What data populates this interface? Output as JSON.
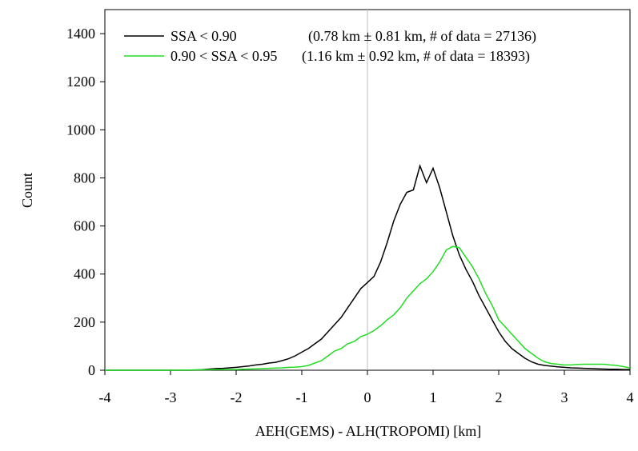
{
  "chart_data": {
    "type": "line",
    "x_label": "AEH(GEMS) - ALH(TROPOMI) [km]",
    "y_label": "Count",
    "x": [
      -4,
      -3.9,
      -3.8,
      -3.7,
      -3.6,
      -3.5,
      -3.4,
      -3.3,
      -3.2,
      -3.1,
      -3,
      -2.9,
      -2.8,
      -2.7,
      -2.6,
      -2.5,
      -2.4,
      -2.3,
      -2.2,
      -2.1,
      -2,
      -1.9,
      -1.8,
      -1.7,
      -1.6,
      -1.5,
      -1.4,
      -1.3,
      -1.2,
      -1.1,
      -1,
      -0.9,
      -0.8,
      -0.7,
      -0.6,
      -0.5,
      -0.4,
      -0.3,
      -0.2,
      -0.1,
      0,
      0.1,
      0.2,
      0.3,
      0.4,
      0.5,
      0.6,
      0.7,
      0.8,
      0.9,
      1,
      1.1,
      1.2,
      1.3,
      1.4,
      1.5,
      1.6,
      1.7,
      1.8,
      1.9,
      2,
      2.1,
      2.2,
      2.3,
      2.4,
      2.5,
      2.6,
      2.7,
      2.8,
      2.9,
      3,
      3.1,
      3.2,
      3.3,
      3.4,
      3.5,
      3.6,
      3.7,
      3.8,
      3.9,
      4
    ],
    "series": [
      {
        "name": "SSA < 0.90",
        "stats": "(0.78 km ±  0.81 km, # of data = 27136)",
        "color": "#000000",
        "values": [
          0,
          0,
          0,
          0,
          0,
          0,
          0,
          0,
          0,
          0,
          0,
          0,
          0,
          0,
          1,
          3,
          5,
          7,
          8,
          10,
          12,
          15,
          18,
          22,
          25,
          30,
          33,
          40,
          48,
          60,
          75,
          90,
          110,
          130,
          160,
          190,
          220,
          260,
          300,
          340,
          365,
          390,
          450,
          530,
          620,
          690,
          740,
          750,
          850,
          780,
          840,
          760,
          660,
          560,
          480,
          420,
          370,
          310,
          260,
          210,
          160,
          120,
          90,
          70,
          50,
          35,
          25,
          20,
          17,
          14,
          12,
          10,
          9,
          8,
          7,
          6,
          5,
          4,
          4,
          3,
          3
        ]
      },
      {
        "name": "0.90 < SSA < 0.95",
        "stats": "(1.16 km ±  0.92 km, # of data = 18393)",
        "color": "#22dd22",
        "values": [
          0,
          0,
          0,
          0,
          0,
          0,
          0,
          0,
          0,
          0,
          0,
          1,
          1,
          1,
          2,
          2,
          2,
          3,
          3,
          3,
          3,
          4,
          5,
          6,
          7,
          8,
          9,
          10,
          12,
          13,
          15,
          20,
          30,
          40,
          60,
          80,
          90,
          110,
          120,
          140,
          150,
          165,
          185,
          210,
          230,
          260,
          300,
          330,
          360,
          380,
          410,
          450,
          500,
          515,
          510,
          470,
          430,
          380,
          320,
          270,
          210,
          180,
          150,
          120,
          90,
          70,
          50,
          35,
          28,
          25,
          22,
          22,
          24,
          25,
          25,
          25,
          25,
          22,
          20,
          15,
          10
        ]
      }
    ],
    "xlim": [
      -4,
      4
    ],
    "xticks": [
      -4,
      -3,
      -2,
      -1,
      0,
      1,
      2,
      3,
      4
    ],
    "ylim": [
      0,
      1500
    ],
    "yticks": [
      0,
      200,
      400,
      600,
      800,
      1000,
      1200,
      1400
    ],
    "reference_x": 0,
    "legend": "upper-left"
  }
}
